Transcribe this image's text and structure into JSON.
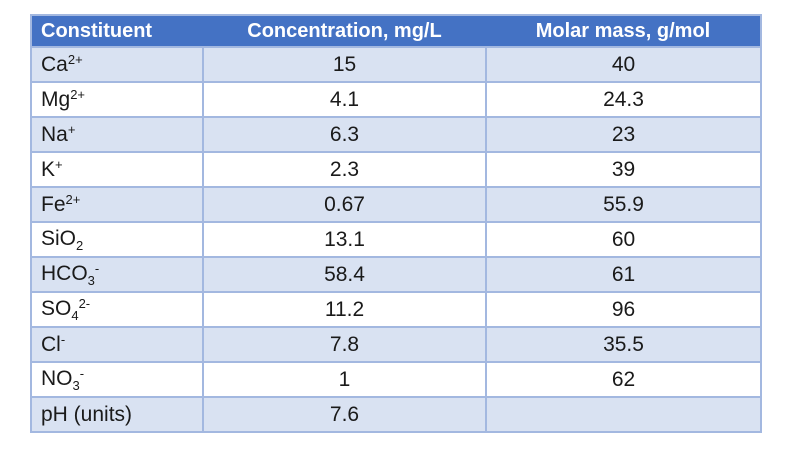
{
  "colors": {
    "header_bg": "#4472c4",
    "header_text": "#ffffff",
    "band_row_bg": "#d9e2f2",
    "plain_row_bg": "#ffffff",
    "grid_border": "#a3b8e0",
    "cell_text": "#1a1a1a",
    "page_bg": "#ffffff"
  },
  "table": {
    "columns": [
      "Constituent",
      "Concentration, mg/L",
      "Molar mass, g/mol"
    ],
    "rows": [
      {
        "formula": [
          {
            "text": "Ca"
          },
          {
            "sup": "2+"
          }
        ],
        "concentration": "15",
        "molar_mass": "40"
      },
      {
        "formula": [
          {
            "text": "Mg"
          },
          {
            "sup": "2+"
          }
        ],
        "concentration": "4.1",
        "molar_mass": "24.3"
      },
      {
        "formula": [
          {
            "text": "Na"
          },
          {
            "sup": "+"
          }
        ],
        "concentration": "6.3",
        "molar_mass": "23"
      },
      {
        "formula": [
          {
            "text": "K"
          },
          {
            "sup": "+"
          }
        ],
        "concentration": "2.3",
        "molar_mass": "39"
      },
      {
        "formula": [
          {
            "text": "Fe"
          },
          {
            "sup": "2+"
          }
        ],
        "concentration": "0.67",
        "molar_mass": "55.9"
      },
      {
        "formula": [
          {
            "text": "SiO"
          },
          {
            "sub": "2"
          }
        ],
        "concentration": "13.1",
        "molar_mass": "60"
      },
      {
        "formula": [
          {
            "text": "HCO"
          },
          {
            "sub": "3"
          },
          {
            "sup": "-"
          }
        ],
        "concentration": "58.4",
        "molar_mass": "61"
      },
      {
        "formula": [
          {
            "text": "SO"
          },
          {
            "sub": "4"
          },
          {
            "sup": "2-"
          }
        ],
        "concentration": "11.2",
        "molar_mass": "96"
      },
      {
        "formula": [
          {
            "text": "Cl"
          },
          {
            "sup": "-"
          }
        ],
        "concentration": "7.8",
        "molar_mass": "35.5"
      },
      {
        "formula": [
          {
            "text": "NO"
          },
          {
            "sub": "3"
          },
          {
            "sup": "-"
          }
        ],
        "concentration": "1",
        "molar_mass": "62"
      },
      {
        "formula": [
          {
            "text": "pH (units)"
          }
        ],
        "concentration": "7.6",
        "molar_mass": ""
      }
    ]
  },
  "chart_data": {
    "type": "table",
    "title": "",
    "columns": [
      "Constituent",
      "Concentration, mg/L",
      "Molar mass, g/mol"
    ],
    "rows": [
      [
        "Ca²⁺",
        15,
        40
      ],
      [
        "Mg²⁺",
        4.1,
        24.3
      ],
      [
        "Na⁺",
        6.3,
        23
      ],
      [
        "K⁺",
        2.3,
        39
      ],
      [
        "Fe²⁺",
        0.67,
        55.9
      ],
      [
        "SiO₂",
        13.1,
        60
      ],
      [
        "HCO₃⁻",
        58.4,
        61
      ],
      [
        "SO₄²⁻",
        11.2,
        96
      ],
      [
        "Cl⁻",
        7.8,
        35.5
      ],
      [
        "NO₃⁻",
        1,
        62
      ],
      [
        "pH (units)",
        7.6,
        null
      ]
    ]
  }
}
